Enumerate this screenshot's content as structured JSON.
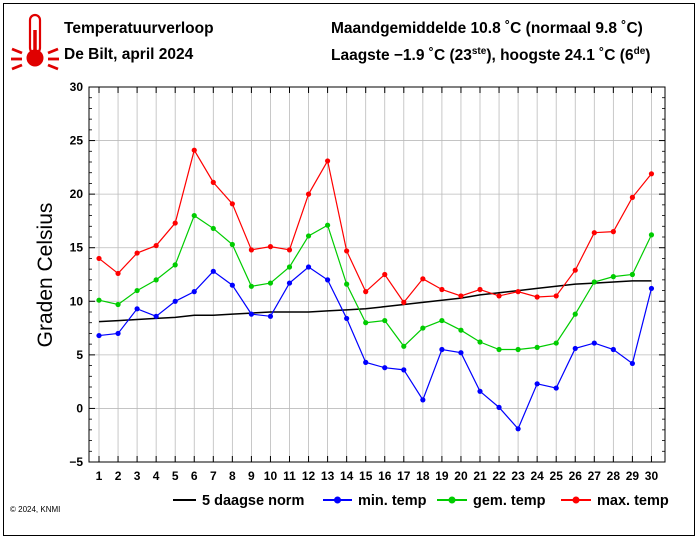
{
  "header": {
    "title": "Temperatuurverloop",
    "location": "De Bilt, april 2024",
    "stat_month_prefix": "Maandgemiddelde 10.8 ˚C (normaal 9.8 ˚C)",
    "stat_min_text": "Laagste −1.9 ˚C (23",
    "stat_min_sup": "ste",
    "stat_max_text": "), hoogste 24.1 ˚C (6",
    "stat_max_sup": "de",
    "stat_close": ")"
  },
  "footer": {
    "copyright": "© 2024, KNMI"
  },
  "colors": {
    "norm": "#000000",
    "min": "#0000ff",
    "gem": "#00cc00",
    "max": "#ff0000",
    "grid": "#bbbbbb",
    "thermometer": "#e00000"
  },
  "chart_data": {
    "type": "line",
    "xlabel": "",
    "ylabel": "Graden Celsius",
    "xlim": [
      1,
      30
    ],
    "ylim": [
      -5,
      30
    ],
    "yticks": [
      -5,
      0,
      5,
      10,
      15,
      20,
      25,
      30
    ],
    "x": [
      1,
      2,
      3,
      4,
      5,
      6,
      7,
      8,
      9,
      10,
      11,
      12,
      13,
      14,
      15,
      16,
      17,
      18,
      19,
      20,
      21,
      22,
      23,
      24,
      25,
      26,
      27,
      28,
      29,
      30
    ],
    "grid": true,
    "legend_position": "bottom",
    "series": [
      {
        "name": "5 daagse norm",
        "color": "#000000",
        "markers": false,
        "values": [
          8.1,
          8.2,
          8.3,
          8.4,
          8.5,
          8.7,
          8.7,
          8.8,
          8.9,
          9.0,
          9.0,
          9.0,
          9.1,
          9.2,
          9.3,
          9.5,
          9.7,
          9.9,
          10.1,
          10.3,
          10.6,
          10.8,
          11.0,
          11.2,
          11.4,
          11.6,
          11.7,
          11.8,
          11.9,
          11.9
        ]
      },
      {
        "name": "min. temp",
        "color": "#0000ff",
        "markers": true,
        "values": [
          6.8,
          7.0,
          9.3,
          8.6,
          10.0,
          10.9,
          12.8,
          11.5,
          8.8,
          8.6,
          11.7,
          13.2,
          12.0,
          8.4,
          4.3,
          3.8,
          3.6,
          0.8,
          5.5,
          5.2,
          1.6,
          0.1,
          -1.9,
          2.3,
          1.9,
          5.6,
          6.1,
          5.5,
          4.2,
          11.2
        ]
      },
      {
        "name": "gem. temp",
        "color": "#00cc00",
        "markers": true,
        "values": [
          10.1,
          9.7,
          11.0,
          12.0,
          13.4,
          18.0,
          16.8,
          15.3,
          11.4,
          11.7,
          13.2,
          16.1,
          17.1,
          11.6,
          8.0,
          8.2,
          5.8,
          7.5,
          8.2,
          7.3,
          6.2,
          5.5,
          5.5,
          5.7,
          6.1,
          8.8,
          11.8,
          12.3,
          12.5,
          16.2
        ]
      },
      {
        "name": "max. temp",
        "color": "#ff0000",
        "markers": true,
        "values": [
          14.0,
          12.6,
          14.5,
          15.2,
          17.3,
          24.1,
          21.1,
          19.1,
          14.8,
          15.1,
          14.8,
          20.0,
          23.1,
          14.7,
          10.9,
          12.5,
          9.9,
          12.1,
          11.1,
          10.5,
          11.1,
          10.5,
          10.9,
          10.4,
          10.5,
          12.9,
          16.4,
          16.5,
          19.7,
          21.9
        ]
      }
    ]
  }
}
